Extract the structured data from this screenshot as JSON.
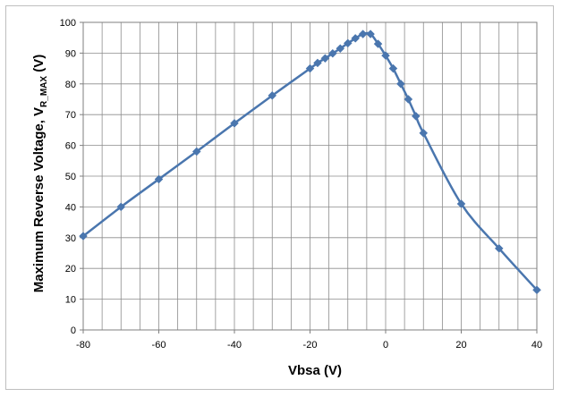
{
  "chart_data": {
    "type": "line",
    "title": "",
    "xlabel": "Vbsa (V)",
    "ylabel": {
      "main": "Maximum Reverse Voltage,  V",
      "subscript": "R_MAX",
      "suffix": " (V)"
    },
    "xlim": [
      -80,
      40
    ],
    "ylim": [
      0,
      100
    ],
    "x_ticks": [
      -80,
      -60,
      -40,
      -20,
      0,
      20,
      40
    ],
    "x_tick_labels": [
      "-80",
      "-60",
      "-40",
      "-20",
      "0",
      "20",
      "40"
    ],
    "y_ticks": [
      0,
      10,
      20,
      30,
      40,
      50,
      60,
      70,
      80,
      90,
      100
    ],
    "y_tick_labels": [
      "0",
      "10",
      "20",
      "30",
      "40",
      "50",
      "60",
      "70",
      "80",
      "90",
      "100"
    ],
    "x_minor_step": 5,
    "grid": true,
    "series": [
      {
        "color": "#4a76ae",
        "marker": "diamond",
        "x": [
          -80,
          -70,
          -60,
          -50,
          -40,
          -30,
          -20,
          -18,
          -16,
          -14,
          -12,
          -10,
          -8,
          -6,
          -4,
          -2,
          0,
          2,
          4,
          6,
          8,
          10,
          20,
          30,
          40
        ],
        "y": [
          30.5,
          40,
          49,
          58,
          67.2,
          76.2,
          85,
          86.8,
          88.3,
          89.9,
          91.5,
          93.2,
          94.8,
          96.2,
          96.2,
          93,
          89.2,
          85,
          80,
          75,
          69.5,
          64,
          41,
          26.5,
          13
        ]
      }
    ]
  }
}
